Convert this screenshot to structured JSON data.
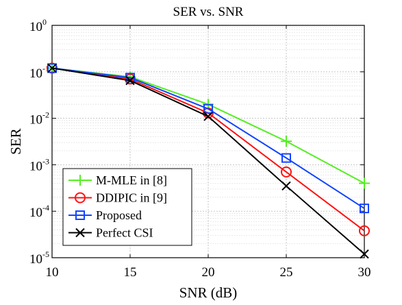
{
  "chart_data": {
    "type": "line",
    "title": "SER vs. SNR",
    "xlabel": "SNR (dB)",
    "ylabel": "SER",
    "xlim": [
      10,
      30
    ],
    "ylim": [
      1e-05,
      1
    ],
    "yscale": "log",
    "grid": true,
    "legend_position": "bottom-left",
    "x": [
      10,
      15,
      20,
      25,
      30
    ],
    "x_tick_labels": [
      "10",
      "15",
      "20",
      "25",
      "30"
    ],
    "y_tick_labels": [
      {
        "base": "10",
        "exp": "0"
      },
      {
        "base": "10",
        "exp": "-1"
      },
      {
        "base": "10",
        "exp": "-2"
      },
      {
        "base": "10",
        "exp": "-3"
      },
      {
        "base": "10",
        "exp": "-4"
      },
      {
        "base": "10",
        "exp": "-5"
      }
    ],
    "series": [
      {
        "name": "M-MLE in [8]",
        "color": "#55ee22",
        "marker": "plus",
        "values": [
          0.12,
          0.078,
          0.02,
          0.0032,
          0.0004
        ]
      },
      {
        "name": "DDIPIC in [9]",
        "color": "#ff1111",
        "marker": "circle",
        "values": [
          0.12,
          0.07,
          0.013,
          0.0007,
          3.8e-05
        ]
      },
      {
        "name": "Proposed",
        "color": "#1144ff",
        "marker": "square",
        "values": [
          0.12,
          0.075,
          0.016,
          0.0014,
          0.000115
        ]
      },
      {
        "name": "Perfect CSI",
        "color": "#000000",
        "marker": "x",
        "values": [
          0.12,
          0.065,
          0.011,
          0.00035,
          1.2e-05
        ]
      }
    ]
  }
}
